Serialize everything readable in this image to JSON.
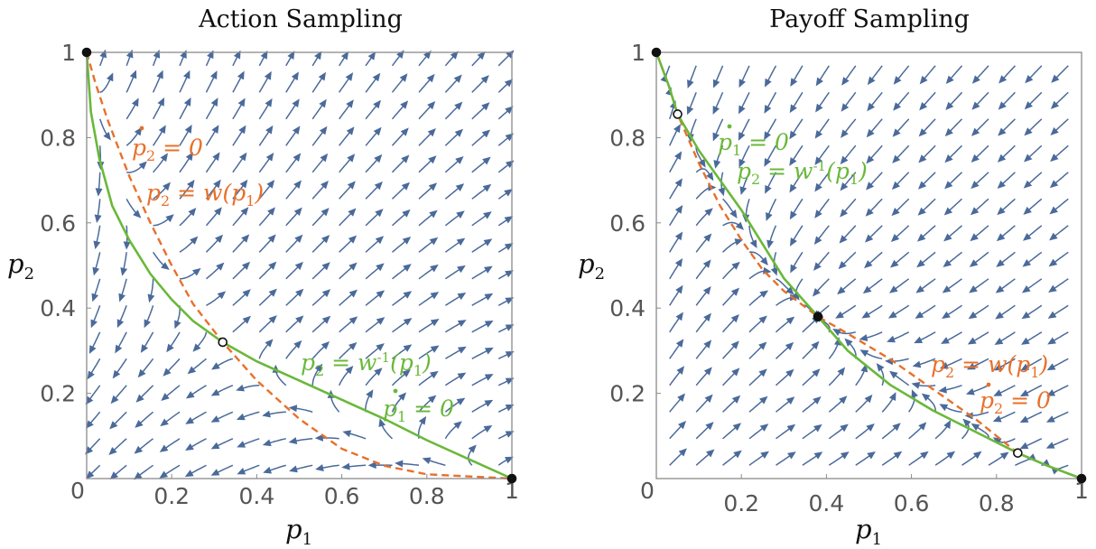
{
  "chart_data": [
    {
      "type": "streamplot",
      "title": "Action Sampling",
      "xlabel": "p1",
      "ylabel": "p2",
      "xlim": [
        0,
        1
      ],
      "ylim": [
        0,
        1
      ],
      "x_ticks": [
        "0",
        "0.2",
        "0.4",
        "0.6",
        "0.8",
        "1"
      ],
      "y_ticks": [
        "0.2",
        "0.4",
        "0.6",
        "0.8",
        "1"
      ],
      "series": [
        {
          "name": "p2 = w(p1)",
          "style": "dashed",
          "color": "#e8702a",
          "points": [
            [
              0,
              1
            ],
            [
              0.02,
              0.93
            ],
            [
              0.05,
              0.84
            ],
            [
              0.1,
              0.71
            ],
            [
              0.15,
              0.6
            ],
            [
              0.2,
              0.5
            ],
            [
              0.25,
              0.41
            ],
            [
              0.32,
              0.32
            ],
            [
              0.4,
              0.23
            ],
            [
              0.5,
              0.14
            ],
            [
              0.6,
              0.07
            ],
            [
              0.7,
              0.03
            ],
            [
              0.8,
              0.01
            ],
            [
              1,
              0
            ]
          ]
        },
        {
          "name": "p2 = w⁻¹(p1)",
          "style": "solid",
          "color": "#6ab83a",
          "points": [
            [
              0,
              1
            ],
            [
              0.01,
              0.86
            ],
            [
              0.03,
              0.75
            ],
            [
              0.06,
              0.64
            ],
            [
              0.1,
              0.56
            ],
            [
              0.15,
              0.48
            ],
            [
              0.2,
              0.42
            ],
            [
              0.25,
              0.37
            ],
            [
              0.32,
              0.32
            ],
            [
              0.4,
              0.275
            ],
            [
              0.5,
              0.23
            ],
            [
              0.6,
              0.185
            ],
            [
              0.7,
              0.14
            ],
            [
              0.8,
              0.09
            ],
            [
              0.9,
              0.045
            ],
            [
              1,
              0
            ]
          ]
        }
      ],
      "fixed_points": [
        {
          "x": 0,
          "y": 1,
          "fill": "filled"
        },
        {
          "x": 1,
          "y": 0,
          "fill": "filled"
        },
        {
          "x": 0.32,
          "y": 0.32,
          "fill": "open"
        }
      ],
      "annotations": [
        {
          "text": "p2 = 0",
          "x": 0.11,
          "y": 0.8,
          "color": "#e8702a"
        },
        {
          "text": "p2 = w(p1)",
          "x": 0.15,
          "y": 0.68,
          "color": "#e8702a"
        },
        {
          "text": "p2 = w-1(p1)",
          "x": 0.55,
          "y": 0.27,
          "color": "#6ab83a"
        },
        {
          "text": "p1 = 0",
          "x": 0.7,
          "y": 0.16,
          "color": "#6ab83a"
        }
      ]
    },
    {
      "type": "streamplot",
      "title": "Payoff Sampling",
      "xlabel": "p1",
      "ylabel": "p2",
      "xlim": [
        0,
        1
      ],
      "ylim": [
        0,
        1
      ],
      "x_ticks": [
        "0",
        "0.2",
        "0.4",
        "0.6",
        "0.8",
        "1"
      ],
      "y_ticks": [
        "0.2",
        "0.4",
        "0.6",
        "0.8",
        "1"
      ],
      "series": [
        {
          "name": "p2 = w(p1)",
          "style": "dashed",
          "color": "#e8702a",
          "points": [
            [
              0,
              1
            ],
            [
              0.03,
              0.92
            ],
            [
              0.05,
              0.855
            ],
            [
              0.1,
              0.74
            ],
            [
              0.15,
              0.64
            ],
            [
              0.2,
              0.56
            ],
            [
              0.25,
              0.49
            ],
            [
              0.3,
              0.44
            ],
            [
              0.38,
              0.38
            ],
            [
              0.45,
              0.34
            ],
            [
              0.55,
              0.28
            ],
            [
              0.65,
              0.21
            ],
            [
              0.75,
              0.14
            ],
            [
              0.85,
              0.06
            ],
            [
              0.92,
              0.03
            ],
            [
              1,
              0
            ]
          ]
        },
        {
          "name": "p2 = w⁻¹(p1)",
          "style": "solid",
          "color": "#6ab83a",
          "points": [
            [
              0,
              1
            ],
            [
              0.03,
              0.92
            ],
            [
              0.05,
              0.855
            ],
            [
              0.1,
              0.77
            ],
            [
              0.15,
              0.7
            ],
            [
              0.2,
              0.63
            ],
            [
              0.25,
              0.55
            ],
            [
              0.3,
              0.47
            ],
            [
              0.38,
              0.38
            ],
            [
              0.45,
              0.3
            ],
            [
              0.55,
              0.22
            ],
            [
              0.65,
              0.16
            ],
            [
              0.75,
              0.11
            ],
            [
              0.85,
              0.06
            ],
            [
              0.92,
              0.03
            ],
            [
              1,
              0
            ]
          ]
        }
      ],
      "fixed_points": [
        {
          "x": 0,
          "y": 1,
          "fill": "filled"
        },
        {
          "x": 1,
          "y": 0,
          "fill": "filled"
        },
        {
          "x": 0.38,
          "y": 0.38,
          "fill": "filled"
        },
        {
          "x": 0.05,
          "y": 0.855,
          "fill": "open"
        },
        {
          "x": 0.85,
          "y": 0.06,
          "fill": "open"
        }
      ],
      "annotations": [
        {
          "text": "p1 = 0",
          "x": 0.15,
          "y": 0.79,
          "color": "#6ab83a"
        },
        {
          "text": "p2 = w-1(p1)",
          "x": 0.19,
          "y": 0.71,
          "color": "#6ab83a"
        },
        {
          "text": "p2 = w(p1)",
          "x": 0.66,
          "y": 0.25,
          "color": "#e8702a"
        },
        {
          "text": "p2 = 0",
          "x": 0.76,
          "y": 0.16,
          "color": "#e8702a"
        }
      ]
    }
  ],
  "colors": {
    "stream": "#4a6a9a",
    "w_curve": "#e8702a",
    "winv_curve": "#6ab83a"
  },
  "text": {
    "left_title": "Action Sampling",
    "right_title": "Payoff Sampling"
  }
}
